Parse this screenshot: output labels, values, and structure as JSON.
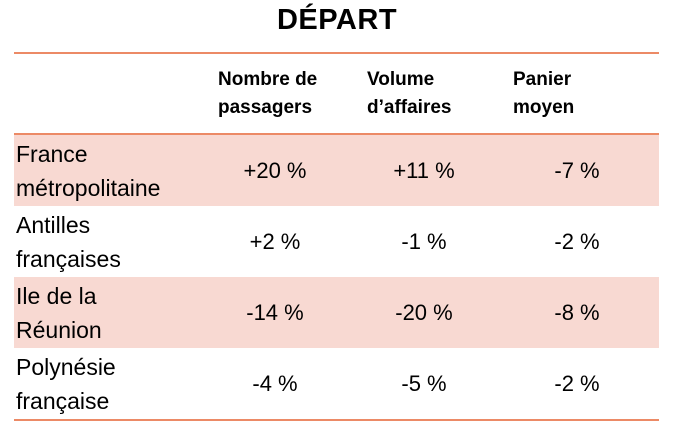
{
  "title": "DÉPART",
  "table": {
    "headers": [
      {
        "line1": "Nombre de",
        "line2": "passagers"
      },
      {
        "line1": "Volume",
        "line2": "d’affaires"
      },
      {
        "line1": "Panier",
        "line2": "moyen"
      }
    ],
    "rows": [
      {
        "label_line1": "France",
        "label_line2": "métropolitaine",
        "passagers": "+20 %",
        "volume": "+11 %",
        "panier": "-7 %"
      },
      {
        "label_line1": "Antilles",
        "label_line2": "françaises",
        "passagers": "+2 %",
        "volume": "-1 %",
        "panier": "-2 %"
      },
      {
        "label_line1": "Ile de la",
        "label_line2": "Réunion",
        "passagers": "-14 %",
        "volume": "-20 %",
        "panier": "-8 %"
      },
      {
        "label_line1": "Polynésie",
        "label_line2": "française",
        "passagers": "-4 %",
        "volume": "-5 %",
        "panier": "-2 %"
      }
    ]
  },
  "colors": {
    "rule": "#ec8a66",
    "row_shade": "#f8d9d2"
  }
}
